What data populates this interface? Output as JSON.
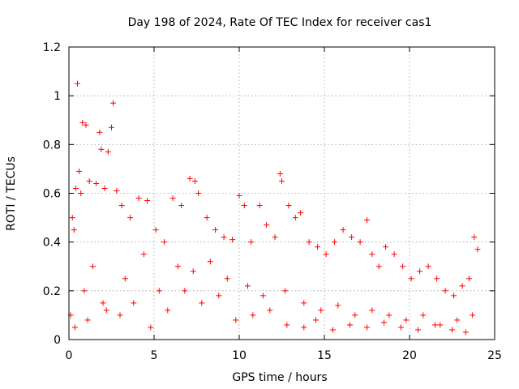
{
  "chart_data": {
    "type": "scatter",
    "title": "Day 198 of 2024, Rate Of TEC Index for receiver cas1",
    "xlabel": "GPS time / hours",
    "ylabel": "ROTI / TECUs",
    "xlim": [
      0,
      25
    ],
    "ylim": [
      0,
      1.2
    ],
    "grid": true,
    "marker": "+",
    "marker_color": "#ff0000",
    "x_ticks": [
      0,
      5,
      10,
      15,
      20,
      25
    ],
    "x_tick_labels": [
      "0",
      "5",
      "10",
      "15",
      "20",
      "25"
    ],
    "y_ticks": [
      0,
      0.2,
      0.4,
      0.6,
      0.8,
      1.0,
      1.2
    ],
    "y_tick_labels": [
      "0",
      "0.2",
      "0.4",
      "0.6",
      "0.8",
      "1",
      "1.2"
    ],
    "series": [
      {
        "name": "ROTI",
        "x": [
          0.3,
          0.5,
          0.8,
          1.0,
          1.8,
          2.3,
          2.6,
          2.5,
          1.9,
          0.6,
          0.4,
          0.2,
          0.7,
          1.2,
          1.6,
          2.1,
          2.8,
          3.1,
          3.6,
          4.1,
          4.6,
          5.1,
          5.6,
          6.1,
          6.6,
          7.1,
          7.4,
          7.6,
          8.1,
          8.6,
          9.1,
          9.6,
          10.0,
          10.3,
          10.7,
          11.2,
          11.6,
          12.1,
          12.4,
          12.5,
          12.9,
          13.3,
          13.6,
          14.1,
          14.6,
          15.1,
          15.6,
          16.1,
          16.6,
          17.1,
          17.5,
          17.8,
          18.2,
          18.6,
          19.1,
          19.6,
          20.1,
          20.6,
          21.1,
          21.6,
          22.1,
          22.6,
          23.1,
          23.5,
          23.8,
          24.0,
          0.1,
          0.9,
          1.4,
          2.0,
          3.3,
          4.4,
          5.3,
          6.4,
          7.3,
          8.3,
          9.3,
          10.5,
          11.4,
          12.7,
          13.8,
          14.8,
          15.8,
          16.8,
          17.8,
          18.8,
          19.8,
          20.8,
          21.8,
          22.8,
          23.7,
          0.35,
          1.1,
          2.2,
          3.0,
          3.8,
          4.8,
          5.8,
          6.8,
          7.8,
          8.8,
          9.8,
          10.8,
          11.8,
          12.8,
          13.8,
          14.5,
          15.5,
          16.5,
          17.5,
          18.5,
          19.5,
          20.5,
          21.5,
          22.5,
          23.3
        ],
        "y": [
          0.45,
          1.05,
          0.89,
          0.88,
          0.85,
          0.77,
          0.97,
          0.87,
          0.78,
          0.69,
          0.62,
          0.5,
          0.6,
          0.65,
          0.64,
          0.62,
          0.61,
          0.55,
          0.5,
          0.58,
          0.57,
          0.45,
          0.4,
          0.58,
          0.55,
          0.66,
          0.65,
          0.6,
          0.5,
          0.45,
          0.42,
          0.41,
          0.59,
          0.55,
          0.4,
          0.55,
          0.47,
          0.42,
          0.68,
          0.65,
          0.55,
          0.5,
          0.52,
          0.4,
          0.38,
          0.35,
          0.4,
          0.45,
          0.42,
          0.4,
          0.49,
          0.35,
          0.3,
          0.38,
          0.35,
          0.3,
          0.25,
          0.28,
          0.3,
          0.25,
          0.2,
          0.18,
          0.22,
          0.25,
          0.42,
          0.37,
          0.1,
          0.2,
          0.3,
          0.15,
          0.25,
          0.35,
          0.2,
          0.3,
          0.28,
          0.32,
          0.25,
          0.22,
          0.18,
          0.2,
          0.15,
          0.12,
          0.14,
          0.1,
          0.12,
          0.1,
          0.08,
          0.1,
          0.06,
          0.08,
          0.1,
          0.05,
          0.08,
          0.12,
          0.1,
          0.15,
          0.05,
          0.12,
          0.2,
          0.15,
          0.18,
          0.08,
          0.1,
          0.12,
          0.06,
          0.05,
          0.08,
          0.04,
          0.06,
          0.05,
          0.07,
          0.05,
          0.04,
          0.06,
          0.04,
          0.03
        ]
      }
    ]
  }
}
